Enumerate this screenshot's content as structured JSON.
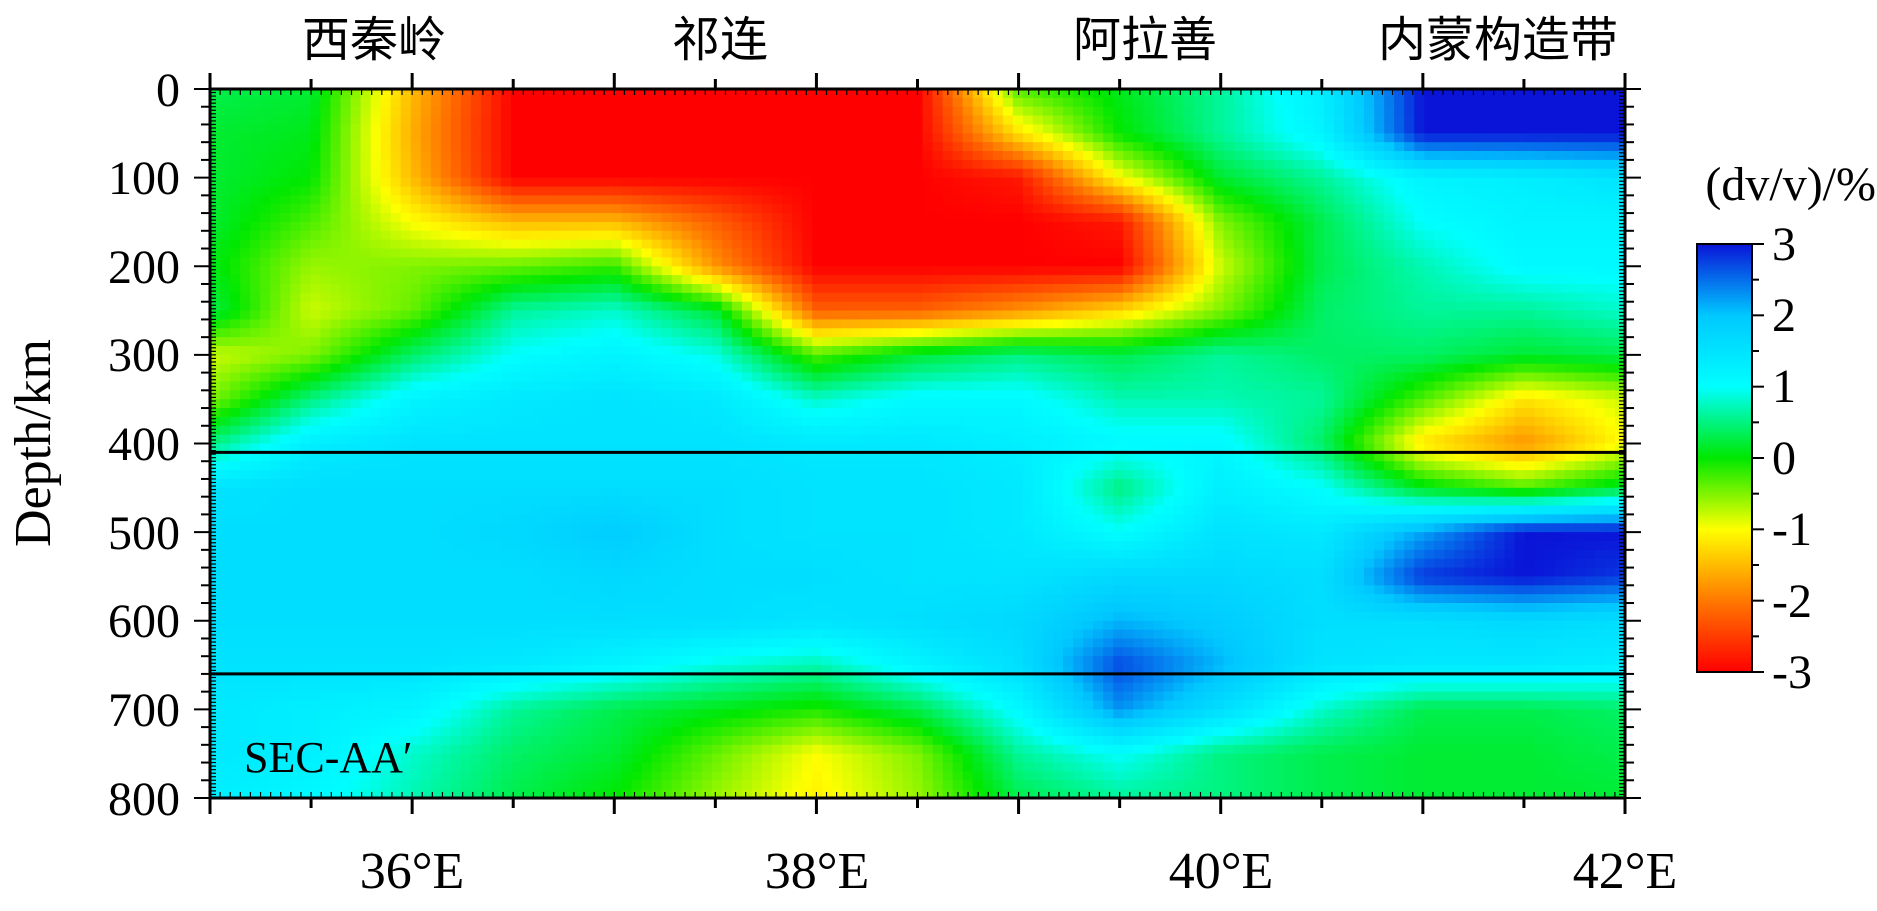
{
  "chart_data": {
    "type": "heatmap",
    "section_label": "SEC-AA′",
    "ylabel": "Depth/km",
    "xlim": [
      35,
      42
    ],
    "ylim": [
      0,
      800
    ],
    "y_reversed": true,
    "x_ticks": [
      {
        "value": 36,
        "label": "36°E"
      },
      {
        "value": 38,
        "label": "38°E"
      },
      {
        "value": 40,
        "label": "40°E"
      },
      {
        "value": 42,
        "label": "42°E"
      }
    ],
    "y_ticks": [
      {
        "value": 0,
        "label": "0"
      },
      {
        "value": 100,
        "label": "100"
      },
      {
        "value": 200,
        "label": "200"
      },
      {
        "value": 300,
        "label": "300"
      },
      {
        "value": 400,
        "label": "400"
      },
      {
        "value": 500,
        "label": "500"
      },
      {
        "value": 600,
        "label": "600"
      },
      {
        "value": 700,
        "label": "700"
      },
      {
        "value": 800,
        "label": "800"
      }
    ],
    "regions": [
      {
        "label": "西秦岭",
        "x": 35.8
      },
      {
        "label": "祁连",
        "x": 37.5
      },
      {
        "label": "阿拉善",
        "x": 39.6
      },
      {
        "label": "内蒙构造带",
        "x": 41.1
      }
    ],
    "discontinuities": [
      410,
      660
    ],
    "colorbar": {
      "title": "(dv/v)/%",
      "range": [
        -3,
        3
      ],
      "ticks": [
        "3",
        "2",
        "1",
        "0",
        "-1",
        "-2",
        "-3"
      ],
      "colors": [
        "#0a14d8",
        "#00c8ff",
        "#00ffff",
        "#00e800",
        "#ffff00",
        "#ff7800",
        "#ff0000"
      ]
    },
    "grid": {
      "x": [
        35,
        35.5,
        36,
        36.5,
        37,
        37.5,
        38,
        38.5,
        39,
        39.5,
        40,
        40.5,
        41,
        41.5,
        42
      ],
      "y": [
        0,
        50,
        100,
        150,
        200,
        250,
        300,
        350,
        400,
        450,
        500,
        550,
        600,
        650,
        700,
        750,
        800
      ],
      "values": [
        [
          0.3,
          0.2,
          -1.5,
          -3,
          -3,
          -3,
          -3,
          -3,
          -0.3,
          0.1,
          0.6,
          1.3,
          3,
          3,
          3
        ],
        [
          0.2,
          0.1,
          -1.6,
          -3,
          -3,
          -3,
          -3,
          -3,
          -1.2,
          0,
          0.6,
          1.2,
          3,
          3,
          3
        ],
        [
          0.2,
          0,
          -1.5,
          -3,
          -3,
          -3,
          -3,
          -3,
          -2.8,
          -1,
          0.2,
          0.6,
          1.2,
          1.3,
          1.5
        ],
        [
          0.2,
          -0.3,
          -1,
          -1.5,
          -1.5,
          -2.2,
          -3,
          -3,
          -3,
          -2.8,
          -0.5,
          0.3,
          1,
          1.2,
          1.2
        ],
        [
          0.1,
          -0.6,
          -0.5,
          -0.4,
          -0.2,
          -1.8,
          -3,
          -3,
          -3,
          -3,
          -0.8,
          0.3,
          0.7,
          1.1,
          1.1
        ],
        [
          0.3,
          -0.8,
          -0.4,
          0.6,
          0.8,
          0.2,
          -2.2,
          -2.2,
          -1.8,
          -1.3,
          -0.5,
          0.4,
          0.6,
          0.6,
          0.8
        ],
        [
          -0.8,
          -0.5,
          0.4,
          1,
          1.2,
          0.9,
          -0.3,
          0.2,
          0.5,
          0.3,
          0.6,
          0.4,
          0.4,
          0.2,
          0.3
        ],
        [
          -0.5,
          0.5,
          1.2,
          1.4,
          1.5,
          1.4,
          0.8,
          1.1,
          1.1,
          0.7,
          0.7,
          0.6,
          -0.3,
          -1.2,
          -0.8
        ],
        [
          0.5,
          1.3,
          1.5,
          1.5,
          1.5,
          1.5,
          1.4,
          1.4,
          1.3,
          1.1,
          1.1,
          0.4,
          -1.2,
          -1.8,
          -1
        ],
        [
          1.5,
          1.6,
          1.6,
          1.6,
          1.6,
          1.6,
          1.5,
          1.5,
          1.4,
          0.5,
          1.3,
          1,
          0.1,
          -0.3,
          0.2
        ],
        [
          1.6,
          1.6,
          1.6,
          1.7,
          1.9,
          1.6,
          1.5,
          1.5,
          1.4,
          1,
          1.5,
          1.4,
          2.2,
          3,
          3
        ],
        [
          1.6,
          1.6,
          1.6,
          1.6,
          1.7,
          1.6,
          1.6,
          1.5,
          1.5,
          1.7,
          1.7,
          1.6,
          2.8,
          3,
          2.8
        ],
        [
          1.6,
          1.6,
          1.6,
          1.6,
          1.6,
          1.6,
          1.5,
          1.6,
          1.7,
          2.1,
          1.9,
          1.6,
          1.6,
          1.7,
          1.6
        ],
        [
          1.5,
          1.5,
          1.5,
          1.4,
          1.2,
          0.9,
          0.7,
          1.2,
          1.6,
          2.7,
          2.1,
          1.5,
          1.4,
          1.4,
          1.3
        ],
        [
          1.4,
          1.3,
          1.2,
          0.6,
          0.3,
          0.1,
          -0.1,
          0.3,
          1.1,
          2.3,
          1.6,
          0.8,
          0.3,
          0.3,
          0.4
        ],
        [
          1.4,
          1.3,
          0.8,
          0.4,
          0.2,
          -0.4,
          -1,
          -0.5,
          0.6,
          1,
          0.5,
          0.3,
          0.2,
          0.2,
          0.3
        ],
        [
          1.3,
          1.1,
          0.7,
          0.3,
          0,
          -0.6,
          -1.1,
          -0.6,
          0.3,
          0.6,
          0.5,
          0.3,
          0.2,
          0.2,
          0.2
        ]
      ]
    }
  }
}
